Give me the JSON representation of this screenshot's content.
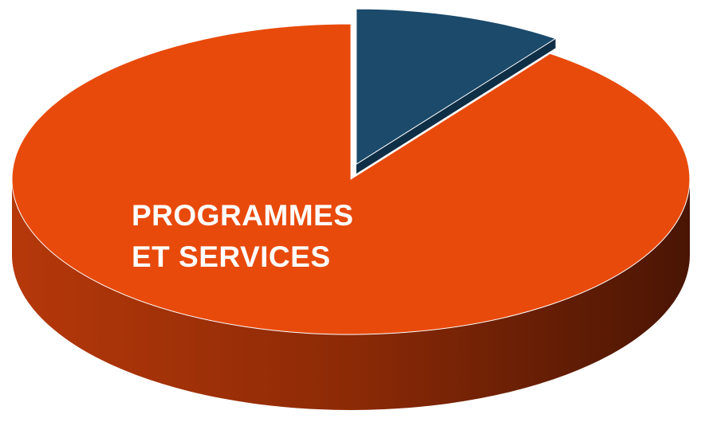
{
  "chart_data": {
    "type": "pie3d",
    "categories": [
      null,
      "PROGRAMMES ET SERVICES"
    ],
    "series": [
      {
        "values": [
          10,
          90
        ],
        "colors": [
          "#1b4a6b",
          "#e84a0c"
        ]
      }
    ]
  }
}
